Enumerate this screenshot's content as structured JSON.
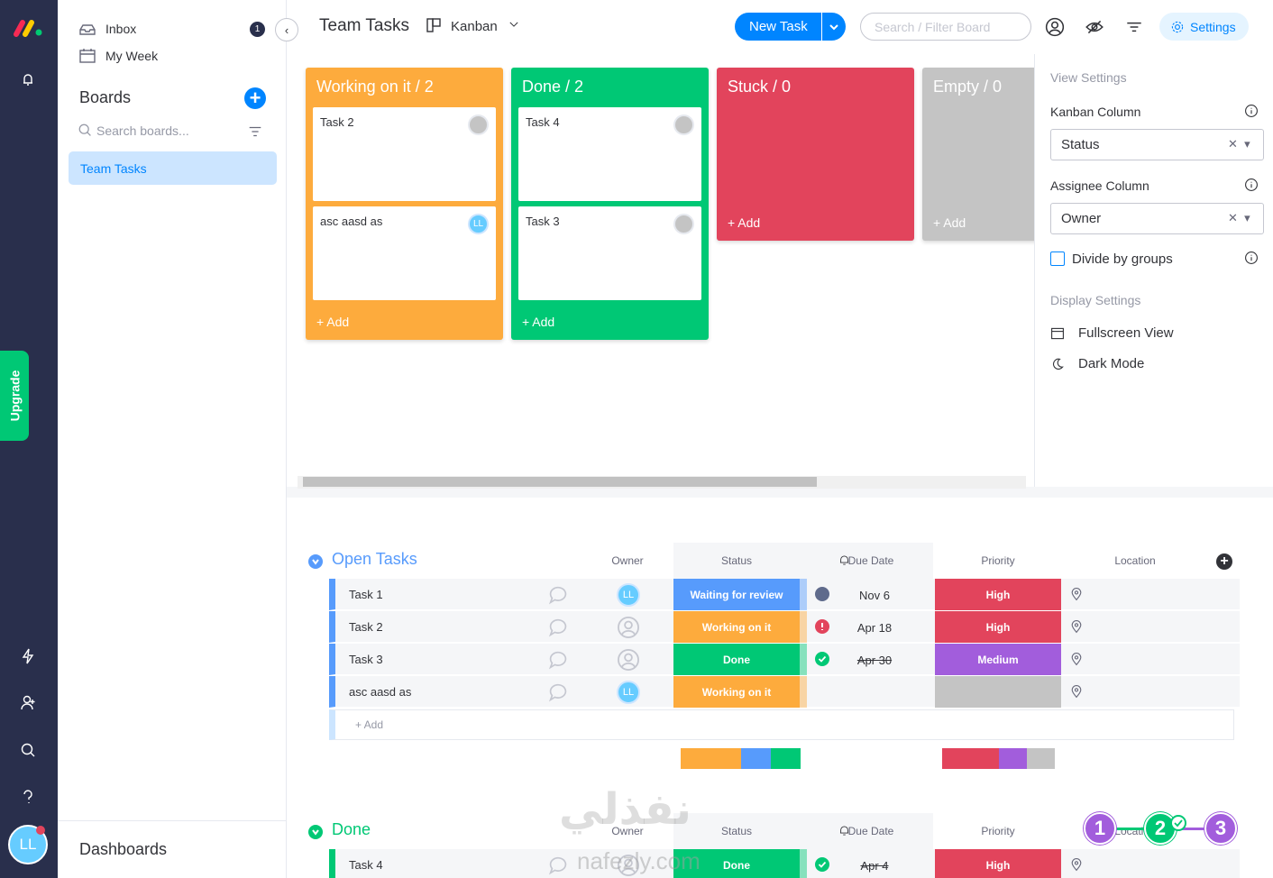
{
  "sidebar": {
    "inbox": "Inbox",
    "inbox_badge": "1",
    "my_week": "My Week",
    "boards_title": "Boards",
    "search_placeholder": "Search boards...",
    "boards": [
      "Team Tasks"
    ],
    "dashboards": "Dashboards",
    "upgrade": "Upgrade",
    "avatar": "LL"
  },
  "header": {
    "title": "Team Tasks",
    "view": "Kanban",
    "new_task": "New Task",
    "search_placeholder": "Search / Filter Board",
    "settings": "Settings"
  },
  "kanban": {
    "columns": [
      {
        "title": "Working on it / 2",
        "color": "#fdab3d",
        "cards": [
          {
            "name": "Task 2"
          },
          {
            "name": "asc aasd as",
            "avatar": "LL"
          }
        ],
        "add": "+ Add"
      },
      {
        "title": "Done / 2",
        "color": "#00c875",
        "cards": [
          {
            "name": "Task 4"
          },
          {
            "name": "Task 3"
          }
        ],
        "add": "+ Add"
      },
      {
        "title": "Stuck / 0",
        "color": "#e2445c",
        "cards": [],
        "add": "+ Add"
      },
      {
        "title": "Empty / 0",
        "color": "#c4c4c4",
        "cards": [],
        "add": "+ Add"
      }
    ]
  },
  "settings_panel": {
    "view_settings": "View Settings",
    "kanban_column": "Kanban Column",
    "kanban_value": "Status",
    "assignee_column": "Assignee Column",
    "assignee_value": "Owner",
    "divide": "Divide by groups",
    "display_settings": "Display Settings",
    "fullscreen": "Fullscreen View",
    "dark_mode": "Dark Mode"
  },
  "groups": [
    {
      "name": "Open Tasks",
      "color": "#579bfc",
      "columns": [
        "Owner",
        "Status",
        "Due Date",
        "Priority",
        "Location"
      ],
      "rows": [
        {
          "name": "Task 1",
          "owner": "LL",
          "status": "Waiting for review",
          "status_color": "#579bfc",
          "due": "Nov 6",
          "priority": "High",
          "priority_color": "#e2445c"
        },
        {
          "name": "Task 2",
          "owner": null,
          "status": "Working on it",
          "status_color": "#fdab3d",
          "due": "Apr 18",
          "priority": "High",
          "priority_color": "#e2445c"
        },
        {
          "name": "Task 3",
          "owner": null,
          "status": "Done",
          "status_color": "#00c875",
          "due": "Apr 30",
          "priority": "Medium",
          "priority_color": "#a25ddc"
        },
        {
          "name": "asc aasd as",
          "owner": "LL",
          "status": "Working on it",
          "status_color": "#fdab3d",
          "due": null,
          "priority": null,
          "priority_color": "#c4c4c4"
        }
      ],
      "add": "+ Add"
    },
    {
      "name": "Done",
      "color": "#00c875",
      "columns": [
        "Owner",
        "Status",
        "Due Date",
        "Priority",
        "Location"
      ],
      "rows": [
        {
          "name": "Task 4",
          "owner": null,
          "status": "Done",
          "status_color": "#00c875",
          "due": "Apr 4",
          "priority": "High",
          "priority_color": "#e2445c"
        }
      ]
    }
  ],
  "watermark": {
    "arabic": "نفذلي",
    "latin": "nafezly.com"
  },
  "steps": [
    "1",
    "2",
    "3"
  ]
}
